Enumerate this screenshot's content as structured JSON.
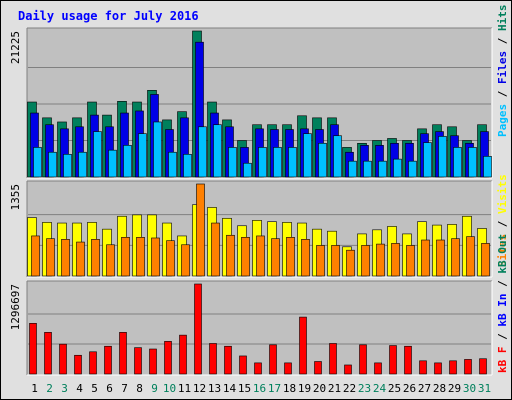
{
  "colors": {
    "frame_bg": "#e0e0e0",
    "panel_bg": "#c0c0c0",
    "grid": "#808080",
    "title": "#0000ff",
    "hits": "#00805c",
    "files": "#0000e6",
    "pages": "#00c0ff",
    "visits": "#ffff00",
    "sites": "#ff8000",
    "kbin": "#0000ff",
    "kbout": "#00805c",
    "kbf": "#ff0000",
    "weekday_label": "#000000",
    "weekend_label": "#00805c"
  },
  "chart_data": [
    {
      "type": "bar",
      "title": "Daily usage for July 2016",
      "ymax_label": "21225",
      "ylim": [
        0,
        21225
      ],
      "legend": [
        "Pages",
        "Files",
        "Hits"
      ],
      "categories": [
        "1",
        "2",
        "3",
        "4",
        "5",
        "6",
        "7",
        "8",
        "9",
        "10",
        "11",
        "12",
        "13",
        "14",
        "15",
        "16",
        "17",
        "18",
        "19",
        "20",
        "21",
        "22",
        "23",
        "24",
        "25",
        "26",
        "27",
        "28",
        "29",
        "30",
        "31"
      ],
      "weekend_days": [
        "2",
        "3",
        "9",
        "10",
        "16",
        "17",
        "23",
        "24",
        "30",
        "31"
      ],
      "series": [
        {
          "name": "Hits",
          "values": [
            10900,
            8600,
            8000,
            8600,
            10900,
            9000,
            11000,
            10900,
            12600,
            8300,
            9500,
            21225,
            10900,
            8300,
            5300,
            7600,
            7600,
            7600,
            8900,
            8600,
            8600,
            4300,
            4900,
            5300,
            5600,
            5300,
            7000,
            7600,
            7300,
            5300,
            7600
          ]
        },
        {
          "name": "Files",
          "values": [
            9300,
            7600,
            7000,
            7300,
            9000,
            7300,
            9300,
            9600,
            12000,
            6900,
            8600,
            19600,
            9300,
            7300,
            4300,
            7000,
            6900,
            6900,
            7000,
            6900,
            7600,
            3600,
            4600,
            4600,
            4900,
            4900,
            6300,
            6600,
            6000,
            4900,
            6600
          ]
        },
        {
          "name": "Pages",
          "values": [
            4300,
            3600,
            3300,
            3600,
            6600,
            3900,
            4600,
            6300,
            8000,
            3600,
            3300,
            7300,
            7600,
            4300,
            2000,
            4300,
            4300,
            4300,
            6300,
            4900,
            6000,
            2300,
            2300,
            2300,
            2600,
            2300,
            5000,
            5900,
            4300,
            4300,
            3000
          ]
        }
      ]
    },
    {
      "type": "bar",
      "ymax_label": "1355",
      "ylim": [
        0,
        1355
      ],
      "legend": [
        "Sites",
        "Visits"
      ],
      "categories": [
        "1",
        "2",
        "3",
        "4",
        "5",
        "6",
        "7",
        "8",
        "9",
        "10",
        "11",
        "12",
        "13",
        "14",
        "15",
        "16",
        "17",
        "18",
        "19",
        "20",
        "21",
        "22",
        "23",
        "24",
        "25",
        "26",
        "27",
        "28",
        "29",
        "30",
        "31"
      ],
      "series": [
        {
          "name": "Visits",
          "values": [
            860,
            790,
            780,
            780,
            790,
            690,
            880,
            900,
            900,
            780,
            590,
            1050,
            1010,
            850,
            740,
            820,
            800,
            790,
            780,
            690,
            660,
            430,
            620,
            680,
            730,
            620,
            800,
            750,
            760,
            880,
            700
          ]
        },
        {
          "name": "Sites",
          "values": [
            590,
            550,
            540,
            500,
            540,
            460,
            570,
            570,
            560,
            520,
            460,
            1355,
            780,
            600,
            570,
            590,
            550,
            570,
            540,
            450,
            450,
            380,
            450,
            470,
            480,
            450,
            530,
            530,
            550,
            580,
            480
          ]
        }
      ]
    },
    {
      "type": "bar",
      "ymax_label": "1296697",
      "ylim": [
        0,
        1296697
      ],
      "legend": [
        "kB F",
        "kB In",
        "kB Out"
      ],
      "categories": [
        "1",
        "2",
        "3",
        "4",
        "5",
        "6",
        "7",
        "8",
        "9",
        "10",
        "11",
        "12",
        "13",
        "14",
        "15",
        "16",
        "17",
        "18",
        "19",
        "20",
        "21",
        "22",
        "23",
        "24",
        "25",
        "26",
        "27",
        "28",
        "29",
        "30",
        "31"
      ],
      "series": [
        {
          "name": "kB F",
          "values": [
            730000,
            600000,
            430000,
            270000,
            320000,
            400000,
            600000,
            380000,
            360000,
            470000,
            560000,
            1296697,
            440000,
            400000,
            260000,
            160000,
            420000,
            160000,
            820000,
            180000,
            440000,
            130000,
            420000,
            160000,
            410000,
            400000,
            190000,
            160000,
            190000,
            210000,
            220000
          ]
        }
      ]
    }
  ]
}
